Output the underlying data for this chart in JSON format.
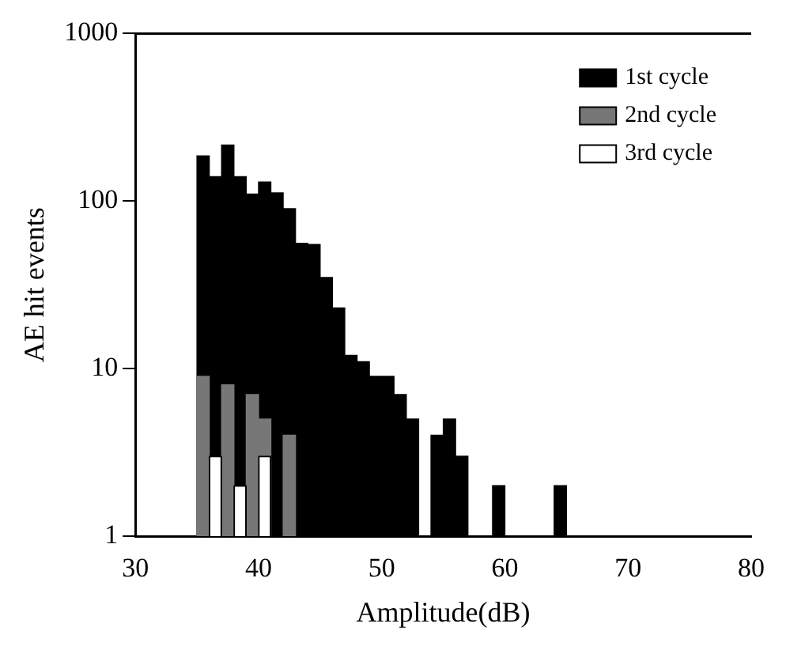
{
  "chart_data": {
    "type": "histogram",
    "xlabel": "Amplitude(dB)",
    "ylabel": "AE hit events",
    "bins": [
      35,
      36,
      37,
      38,
      39,
      40,
      41,
      42,
      43,
      44,
      45,
      46,
      47,
      48,
      49,
      50,
      51,
      52,
      53,
      54,
      55,
      56,
      57,
      58,
      59,
      60,
      61,
      62,
      63,
      64,
      65
    ],
    "series": [
      {
        "name": "1st cycle",
        "color": "#000000",
        "values": [
          186,
          140,
          216,
          140,
          110,
          130,
          112,
          90,
          56,
          55,
          35,
          23,
          12,
          11,
          9,
          9,
          7,
          5,
          null,
          4,
          5,
          3,
          null,
          null,
          2,
          null,
          null,
          null,
          null,
          2
        ]
      },
      {
        "name": "2nd cycle",
        "color": "#777777",
        "values": [
          9,
          null,
          8,
          null,
          7,
          5,
          null,
          4,
          null,
          null,
          null,
          null,
          null,
          null,
          null,
          null,
          null,
          null,
          null,
          null,
          null,
          null,
          null,
          null,
          null,
          null,
          null,
          null,
          null,
          null
        ]
      },
      {
        "name": "3rd cycle",
        "color": "#ffffff",
        "values": [
          null,
          3,
          null,
          2,
          null,
          3,
          null,
          null,
          null,
          null,
          null,
          null,
          null,
          null,
          null,
          null,
          null,
          null,
          null,
          null,
          null,
          null,
          null,
          null,
          null,
          null,
          null,
          null,
          null,
          null
        ]
      }
    ],
    "log": "y",
    "xlim": [
      30,
      80
    ],
    "xticks": [
      30,
      40,
      50,
      60,
      70,
      80
    ],
    "ylim": [
      1,
      1000
    ],
    "yticks": [
      1,
      10,
      100,
      1000
    ],
    "grid": false,
    "legend": "top right"
  }
}
